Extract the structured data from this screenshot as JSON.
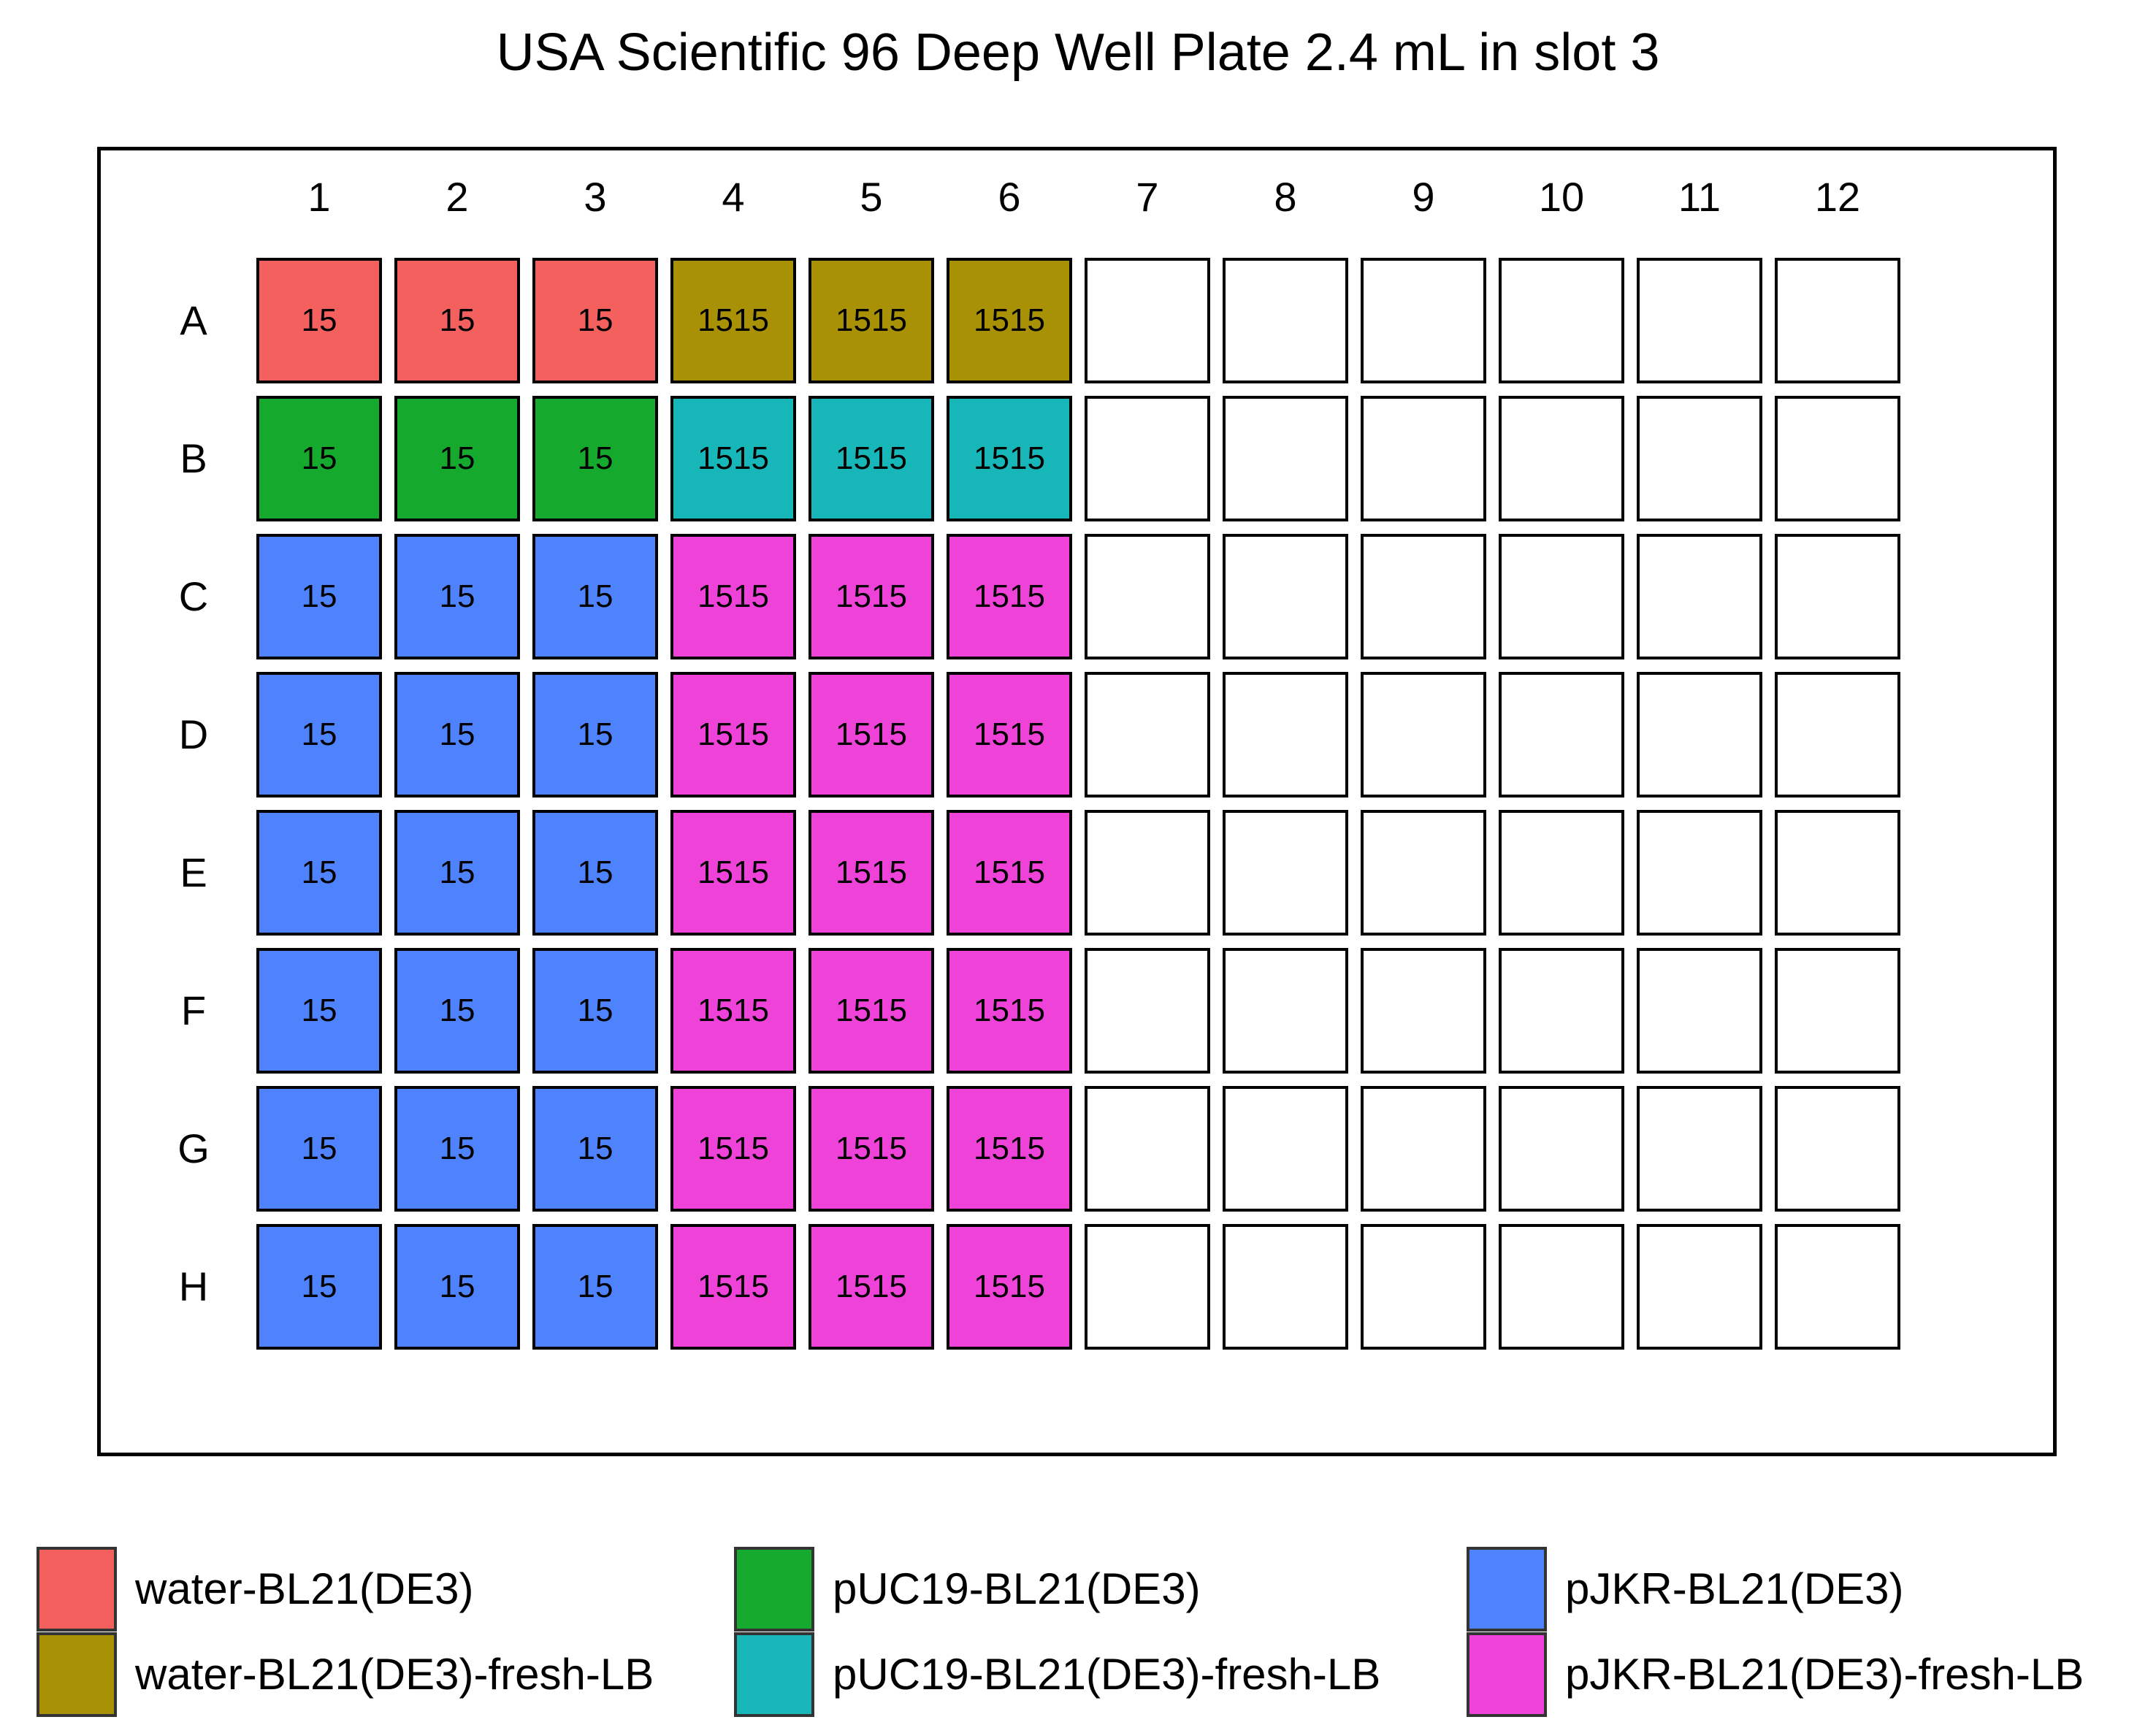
{
  "title": "USA Scientific 96 Deep Well Plate 2.4 mL in slot 3",
  "columns": [
    "1",
    "2",
    "3",
    "4",
    "5",
    "6",
    "7",
    "8",
    "9",
    "10",
    "11",
    "12"
  ],
  "rows": [
    "A",
    "B",
    "C",
    "D",
    "E",
    "F",
    "G",
    "H"
  ],
  "groups": [
    {
      "name": "water-BL21(DE3)",
      "color": "#f3605d"
    },
    {
      "name": "water-BL21(DE3)-fresh-LB",
      "color": "#a89104"
    },
    {
      "name": "pUC19-BL21(DE3)",
      "color": "#15aa2e"
    },
    {
      "name": "pUC19-BL21(DE3)-fresh-LB",
      "color": "#17b6b8"
    },
    {
      "name": "pJKR-BL21(DE3)",
      "color": "#4f82fd"
    },
    {
      "name": "pJKR-BL21(DE3)-fresh-LB",
      "color": "#ef42d9"
    }
  ],
  "wells": {
    "A": [
      {
        "g": 0,
        "v": "15"
      },
      {
        "g": 0,
        "v": "15"
      },
      {
        "g": 0,
        "v": "15"
      },
      {
        "g": 1,
        "v": "1515"
      },
      {
        "g": 1,
        "v": "1515"
      },
      {
        "g": 1,
        "v": "1515"
      },
      null,
      null,
      null,
      null,
      null,
      null
    ],
    "B": [
      {
        "g": 2,
        "v": "15"
      },
      {
        "g": 2,
        "v": "15"
      },
      {
        "g": 2,
        "v": "15"
      },
      {
        "g": 3,
        "v": "1515"
      },
      {
        "g": 3,
        "v": "1515"
      },
      {
        "g": 3,
        "v": "1515"
      },
      null,
      null,
      null,
      null,
      null,
      null
    ],
    "C": [
      {
        "g": 4,
        "v": "15"
      },
      {
        "g": 4,
        "v": "15"
      },
      {
        "g": 4,
        "v": "15"
      },
      {
        "g": 5,
        "v": "1515"
      },
      {
        "g": 5,
        "v": "1515"
      },
      {
        "g": 5,
        "v": "1515"
      },
      null,
      null,
      null,
      null,
      null,
      null
    ],
    "D": [
      {
        "g": 4,
        "v": "15"
      },
      {
        "g": 4,
        "v": "15"
      },
      {
        "g": 4,
        "v": "15"
      },
      {
        "g": 5,
        "v": "1515"
      },
      {
        "g": 5,
        "v": "1515"
      },
      {
        "g": 5,
        "v": "1515"
      },
      null,
      null,
      null,
      null,
      null,
      null
    ],
    "E": [
      {
        "g": 4,
        "v": "15"
      },
      {
        "g": 4,
        "v": "15"
      },
      {
        "g": 4,
        "v": "15"
      },
      {
        "g": 5,
        "v": "1515"
      },
      {
        "g": 5,
        "v": "1515"
      },
      {
        "g": 5,
        "v": "1515"
      },
      null,
      null,
      null,
      null,
      null,
      null
    ],
    "F": [
      {
        "g": 4,
        "v": "15"
      },
      {
        "g": 4,
        "v": "15"
      },
      {
        "g": 4,
        "v": "15"
      },
      {
        "g": 5,
        "v": "1515"
      },
      {
        "g": 5,
        "v": "1515"
      },
      {
        "g": 5,
        "v": "1515"
      },
      null,
      null,
      null,
      null,
      null,
      null
    ],
    "G": [
      {
        "g": 4,
        "v": "15"
      },
      {
        "g": 4,
        "v": "15"
      },
      {
        "g": 4,
        "v": "15"
      },
      {
        "g": 5,
        "v": "1515"
      },
      {
        "g": 5,
        "v": "1515"
      },
      {
        "g": 5,
        "v": "1515"
      },
      null,
      null,
      null,
      null,
      null,
      null
    ],
    "H": [
      {
        "g": 4,
        "v": "15"
      },
      {
        "g": 4,
        "v": "15"
      },
      {
        "g": 4,
        "v": "15"
      },
      {
        "g": 5,
        "v": "1515"
      },
      {
        "g": 5,
        "v": "1515"
      },
      {
        "g": 5,
        "v": "1515"
      },
      null,
      null,
      null,
      null,
      null,
      null
    ]
  }
}
